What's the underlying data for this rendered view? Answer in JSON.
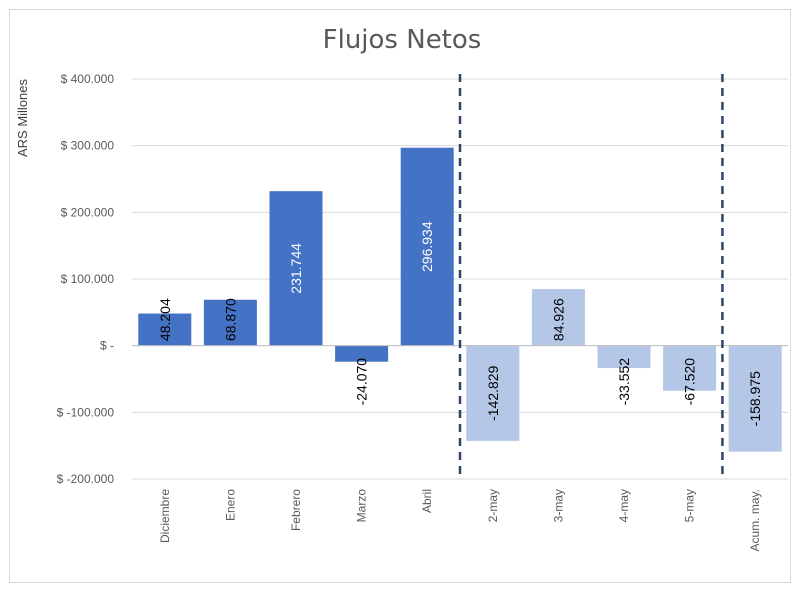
{
  "chart_data": {
    "type": "bar",
    "title": "Flujos Netos",
    "ylabel": "ARS Millones",
    "xlabel": "",
    "ylim": [
      -200000,
      400000
    ],
    "yticks": [
      400000,
      300000,
      200000,
      100000,
      0,
      -100000,
      -200000
    ],
    "ytick_labels": [
      "$ 400.000",
      "$ 300.000",
      "$ 200.000",
      "$ 100.000",
      "$ -",
      "$ -100.000",
      "$ -200.000"
    ],
    "grid": true,
    "categories": [
      "Diciembre",
      "Enero",
      "Febrero",
      "Marzo",
      "Abril",
      "2-may",
      "3-may",
      "4-may",
      "5-may",
      "Acum. may."
    ],
    "values": [
      48204,
      68870,
      231744,
      -24070,
      296934,
      -142829,
      84926,
      -33552,
      -67520,
      -158975
    ],
    "data_labels": [
      "48.204",
      "68.870",
      "231.744",
      "-24.070",
      "296.934",
      "-142.829",
      "84.926",
      "-33.552",
      "-67.520",
      "-158.975"
    ],
    "separators_after": [
      "Abril",
      "5-may"
    ],
    "colors": {
      "monthly": "#4472c4",
      "daily": "#b4c7e7",
      "grid": "#d9d9d9",
      "separator": "#2f4466",
      "text": "#595959"
    }
  }
}
